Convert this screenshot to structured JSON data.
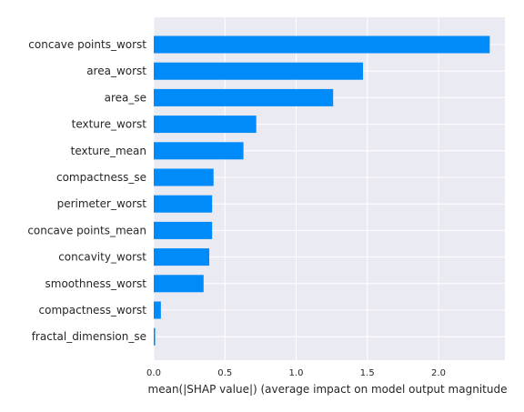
{
  "chart_data": {
    "type": "bar",
    "orientation": "horizontal",
    "categories": [
      "concave points_worst",
      "area_worst",
      "area_se",
      "texture_worst",
      "texture_mean",
      "compactness_se",
      "perimeter_worst",
      "concave points_mean",
      "concavity_worst",
      "smoothness_worst",
      "compactness_worst",
      "fractal_dimension_se"
    ],
    "values": [
      2.36,
      1.47,
      1.26,
      0.72,
      0.63,
      0.42,
      0.41,
      0.41,
      0.39,
      0.35,
      0.05,
      0.01
    ],
    "xlabel": "mean(|SHAP value|) (average impact on model output magnitude",
    "ylabel": "",
    "xlim": [
      0,
      2.5
    ],
    "xticks": [
      "0.0",
      "0.5",
      "1.0",
      "1.5",
      "2.0"
    ],
    "grid": true,
    "colors": {
      "bar": "#008bfb",
      "background": "#eaeaf2",
      "grid": "#ffffff"
    }
  }
}
